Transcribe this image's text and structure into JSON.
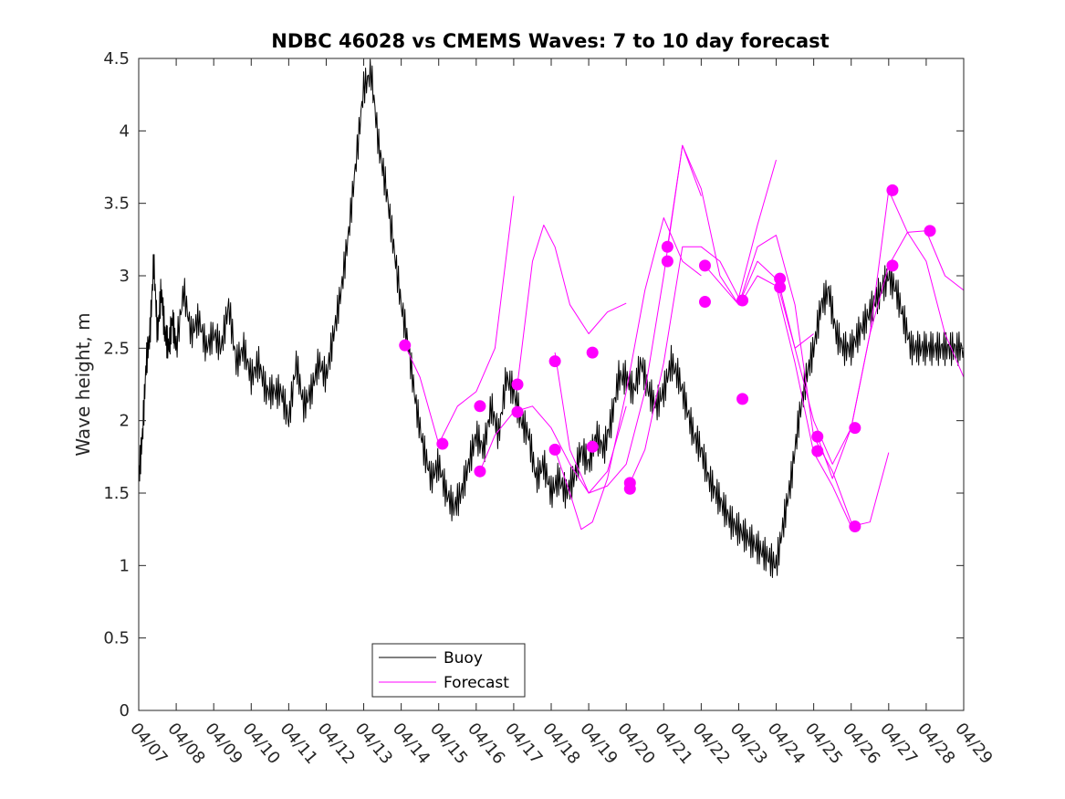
{
  "chart_data": {
    "type": "line",
    "title": "NDBC 46028 vs CMEMS Waves: 7 to 10 day forecast",
    "ylabel": "Wave height, m",
    "xlabel": "",
    "ylim": [
      0,
      4.5
    ],
    "yticks": [
      "0",
      "0.5",
      "1",
      "1.5",
      "2",
      "2.5",
      "3",
      "3.5",
      "4",
      "4.5"
    ],
    "xlim": [
      "04/07",
      "04/29"
    ],
    "xticks": [
      "04/07",
      "04/08",
      "04/09",
      "04/10",
      "04/11",
      "04/12",
      "04/13",
      "04/14",
      "04/15",
      "04/16",
      "04/17",
      "04/18",
      "04/19",
      "04/20",
      "04/21",
      "04/22",
      "04/23",
      "04/24",
      "04/25",
      "04/26",
      "04/27",
      "04/28",
      "04/29"
    ],
    "grid": false,
    "legend_position": "bottom-center",
    "legend": [
      {
        "label": "Buoy",
        "color": "#000000"
      },
      {
        "label": "Forecast",
        "color": "#ff00ff"
      }
    ],
    "series": [
      {
        "name": "Buoy",
        "color": "#000000",
        "x_days_from_0407": [
          0,
          0.1,
          0.2,
          0.3,
          0.4,
          0.5,
          0.6,
          0.7,
          0.8,
          0.9,
          1.0,
          1.2,
          1.4,
          1.6,
          1.8,
          2.0,
          2.2,
          2.4,
          2.6,
          2.8,
          3.0,
          3.2,
          3.4,
          3.6,
          3.8,
          4.0,
          4.2,
          4.4,
          4.6,
          4.8,
          5.0,
          5.2,
          5.4,
          5.6,
          5.8,
          6.0,
          6.2,
          6.4,
          6.6,
          6.8,
          7.0,
          7.2,
          7.4,
          7.6,
          7.8,
          8.0,
          8.2,
          8.4,
          8.6,
          8.8,
          9.0,
          9.2,
          9.4,
          9.6,
          9.8,
          10.0,
          10.2,
          10.4,
          10.6,
          10.8,
          11.0,
          11.2,
          11.4,
          11.6,
          11.8,
          12.0,
          12.2,
          12.4,
          12.6,
          12.8,
          13.0,
          13.2,
          13.4,
          13.6,
          13.8,
          14.0,
          14.2,
          14.4,
          14.6,
          14.8,
          15.0,
          15.2,
          15.4,
          15.6,
          15.8,
          16.0,
          16.2,
          16.4,
          16.6,
          16.8,
          17.0,
          17.2,
          17.4,
          17.6,
          17.8,
          18.0,
          18.2,
          18.4,
          18.6,
          18.8,
          19.0,
          19.2,
          19.4,
          19.6,
          19.8,
          20.0,
          20.2,
          20.4,
          20.6,
          20.8,
          21.0,
          21.2,
          21.4,
          21.6,
          21.8,
          22.0
        ],
        "values": [
          1.6,
          1.9,
          2.4,
          2.6,
          3.1,
          2.6,
          2.9,
          2.6,
          2.5,
          2.7,
          2.5,
          2.9,
          2.6,
          2.7,
          2.5,
          2.6,
          2.5,
          2.8,
          2.4,
          2.5,
          2.3,
          2.4,
          2.2,
          2.2,
          2.2,
          2.0,
          2.4,
          2.1,
          2.2,
          2.4,
          2.3,
          2.6,
          2.9,
          3.3,
          3.8,
          4.3,
          4.4,
          3.9,
          3.6,
          3.2,
          2.8,
          2.5,
          2.1,
          1.8,
          1.6,
          1.7,
          1.5,
          1.4,
          1.5,
          1.7,
          1.9,
          1.8,
          2.1,
          1.9,
          2.3,
          2.2,
          2.0,
          1.9,
          1.6,
          1.7,
          1.5,
          1.6,
          1.5,
          1.6,
          1.8,
          1.7,
          1.9,
          1.8,
          2.0,
          2.3,
          2.3,
          2.2,
          2.4,
          2.2,
          2.1,
          2.2,
          2.4,
          2.3,
          2.1,
          1.9,
          1.8,
          1.6,
          1.5,
          1.4,
          1.3,
          1.25,
          1.2,
          1.15,
          1.1,
          1.05,
          1.0,
          1.3,
          1.6,
          2.0,
          2.3,
          2.5,
          2.8,
          2.9,
          2.6,
          2.5,
          2.5,
          2.6,
          2.7,
          2.8,
          2.9,
          3.0,
          2.9,
          2.7,
          2.5,
          2.5,
          2.5,
          2.5,
          2.5,
          2.5,
          2.5,
          2.5
        ]
      },
      {
        "name": "Forecast",
        "color": "#ff00ff",
        "x_days_from_0407": [
          7.1,
          7.5,
          8.0,
          8.5,
          9.0,
          9.5,
          10.0
        ],
        "values": [
          2.52,
          2.3,
          1.84,
          2.1,
          2.2,
          2.5,
          3.55
        ]
      },
      {
        "name": "",
        "color": "#ff00ff",
        "x_days_from_0407": [
          10.1,
          10.5,
          10.8,
          11.1,
          11.5,
          12.0,
          12.5,
          13.0
        ],
        "values": [
          2.25,
          3.1,
          3.35,
          3.2,
          2.8,
          2.6,
          2.75,
          2.81
        ]
      },
      {
        "name": "",
        "color": "#ff00ff",
        "x_days_from_0407": [
          9.1,
          9.5,
          10.0,
          10.5,
          11.0,
          11.5,
          12.0,
          12.5,
          13.0
        ],
        "values": [
          1.65,
          1.9,
          2.06,
          2.1,
          1.95,
          1.7,
          1.5,
          1.65,
          2.1
        ]
      },
      {
        "name": "",
        "color": "#ff00ff",
        "x_days_from_0407": [
          11.1,
          11.5,
          12.0,
          12.5,
          13.0,
          13.5,
          14.0,
          14.5,
          15.0
        ],
        "values": [
          2.47,
          1.8,
          1.5,
          1.55,
          1.7,
          2.2,
          3.0,
          3.9,
          3.55
        ]
      },
      {
        "name": "",
        "color": "#ff00ff",
        "x_days_from_0407": [
          11.1,
          11.5,
          11.8,
          12.1,
          12.5,
          13.0,
          13.5,
          14.0,
          14.5,
          15.0
        ],
        "values": [
          1.8,
          1.5,
          1.25,
          1.3,
          1.6,
          2.2,
          2.9,
          3.4,
          3.1,
          3.0
        ]
      },
      {
        "name": "",
        "color": "#ff00ff",
        "x_days_from_0407": [
          13.1,
          13.5,
          14.0,
          14.5,
          15.0,
          15.5,
          16.0,
          16.5,
          17.0
        ],
        "values": [
          1.57,
          1.8,
          2.4,
          3.2,
          3.2,
          3.1,
          2.85,
          3.35,
          3.8
        ]
      },
      {
        "name": "",
        "color": "#ff00ff",
        "x_days_from_0407": [
          14.1,
          14.5,
          15.0,
          15.5,
          16.0,
          16.5,
          17.0,
          17.5,
          18.0
        ],
        "values": [
          3.2,
          3.9,
          3.6,
          3.0,
          2.8,
          3.1,
          2.98,
          2.5,
          2.6
        ]
      },
      {
        "name": "",
        "color": "#ff00ff",
        "x_days_from_0407": [
          15.1,
          15.5,
          16.0,
          16.5,
          17.0,
          17.5,
          18.0,
          18.5,
          19.0
        ],
        "values": [
          3.07,
          2.95,
          2.8,
          3.2,
          3.28,
          2.8,
          1.89,
          1.65,
          1.3
        ]
      },
      {
        "name": "",
        "color": "#ff00ff",
        "x_days_from_0407": [
          16.1,
          16.5,
          17.0,
          17.5,
          18.0,
          18.5,
          19.0,
          19.5,
          20.0
        ],
        "values": [
          2.83,
          3.0,
          2.93,
          2.4,
          1.78,
          1.55,
          1.27,
          1.3,
          1.78
        ]
      },
      {
        "name": "",
        "color": "#ff00ff",
        "x_days_from_0407": [
          17.1,
          17.5,
          18.0,
          18.5,
          19.0,
          19.5,
          20.0,
          20.5,
          21.0,
          21.5,
          22.0
        ],
        "values": [
          2.92,
          2.5,
          2.0,
          1.7,
          1.95,
          2.6,
          3.59,
          3.3,
          3.31,
          3.0,
          2.9
        ]
      },
      {
        "name": "",
        "color": "#ff00ff",
        "x_days_from_0407": [
          18.1,
          18.5,
          19.0,
          19.5,
          20.0,
          20.5,
          21.0,
          21.5,
          22.0
        ],
        "values": [
          1.89,
          1.6,
          1.95,
          2.6,
          3.07,
          3.3,
          3.1,
          2.6,
          2.3
        ]
      }
    ],
    "markers": {
      "color": "#ff00ff",
      "points": [
        {
          "x": 7.1,
          "y": 2.52
        },
        {
          "x": 8.1,
          "y": 1.84
        },
        {
          "x": 9.1,
          "y": 2.1
        },
        {
          "x": 9.1,
          "y": 1.65
        },
        {
          "x": 10.1,
          "y": 2.25
        },
        {
          "x": 10.1,
          "y": 2.06
        },
        {
          "x": 11.1,
          "y": 2.41
        },
        {
          "x": 11.1,
          "y": 1.8
        },
        {
          "x": 12.1,
          "y": 2.47
        },
        {
          "x": 12.1,
          "y": 1.82
        },
        {
          "x": 13.1,
          "y": 1.57
        },
        {
          "x": 13.1,
          "y": 1.53
        },
        {
          "x": 14.1,
          "y": 3.2
        },
        {
          "x": 14.1,
          "y": 3.1
        },
        {
          "x": 15.1,
          "y": 3.07
        },
        {
          "x": 15.1,
          "y": 2.82
        },
        {
          "x": 16.1,
          "y": 2.83
        },
        {
          "x": 16.1,
          "y": 2.15
        },
        {
          "x": 17.1,
          "y": 2.98
        },
        {
          "x": 17.1,
          "y": 2.92
        },
        {
          "x": 18.1,
          "y": 1.89
        },
        {
          "x": 18.1,
          "y": 1.79
        },
        {
          "x": 19.1,
          "y": 1.95
        },
        {
          "x": 19.1,
          "y": 1.27
        },
        {
          "x": 20.1,
          "y": 3.59
        },
        {
          "x": 20.1,
          "y": 3.07
        },
        {
          "x": 21.1,
          "y": 3.31
        }
      ]
    }
  }
}
